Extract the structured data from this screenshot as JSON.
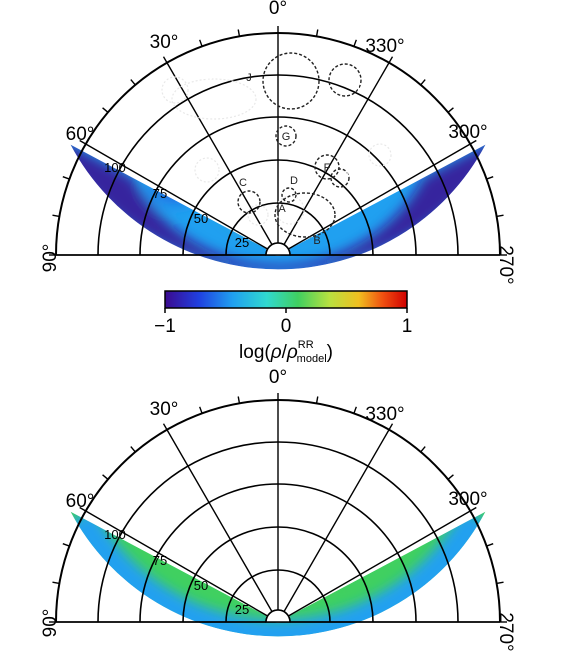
{
  "chart_data": [
    {
      "type": "heatmap",
      "projection": "polar-sector",
      "angle_labels": [
        "0°",
        "30°",
        "330°",
        "60°",
        "300°",
        "90°",
        "270°"
      ],
      "radial_labels": [
        "25",
        "50",
        "75",
        "100"
      ],
      "region_labels": [
        "A",
        "B",
        "C",
        "D",
        "E",
        "F",
        "G",
        "H",
        "I",
        "J",
        "K",
        "L",
        "M"
      ],
      "data_wedge_deg": [
        -62,
        62
      ],
      "radial_range": [
        25,
        125
      ],
      "colorbar": {
        "ticks": [
          "−1",
          "0",
          "1"
        ],
        "range": [
          -1,
          1
        ],
        "label_prefix": "log(",
        "label_rho": "ρ",
        "label_slash": "/",
        "label_sup": "RR",
        "label_sub": "model",
        "label_suffix": ")"
      }
    },
    {
      "type": "heatmap",
      "projection": "polar-sector",
      "angle_labels": [
        "0°",
        "30°",
        "330°",
        "60°",
        "300°",
        "90°",
        "270°"
      ],
      "radial_labels": [
        "25",
        "50",
        "75",
        "100"
      ],
      "data_wedge_deg": [
        -62,
        62
      ],
      "radial_range": [
        25,
        125
      ]
    }
  ],
  "colors": {
    "scale": [
      "#3b0a8f",
      "#2040e0",
      "#20a0f0",
      "#30d8d0",
      "#40d060",
      "#b8e040",
      "#f0c020",
      "#f05010",
      "#d00000"
    ],
    "line": "#000000",
    "circle": "#e8e8e8"
  }
}
